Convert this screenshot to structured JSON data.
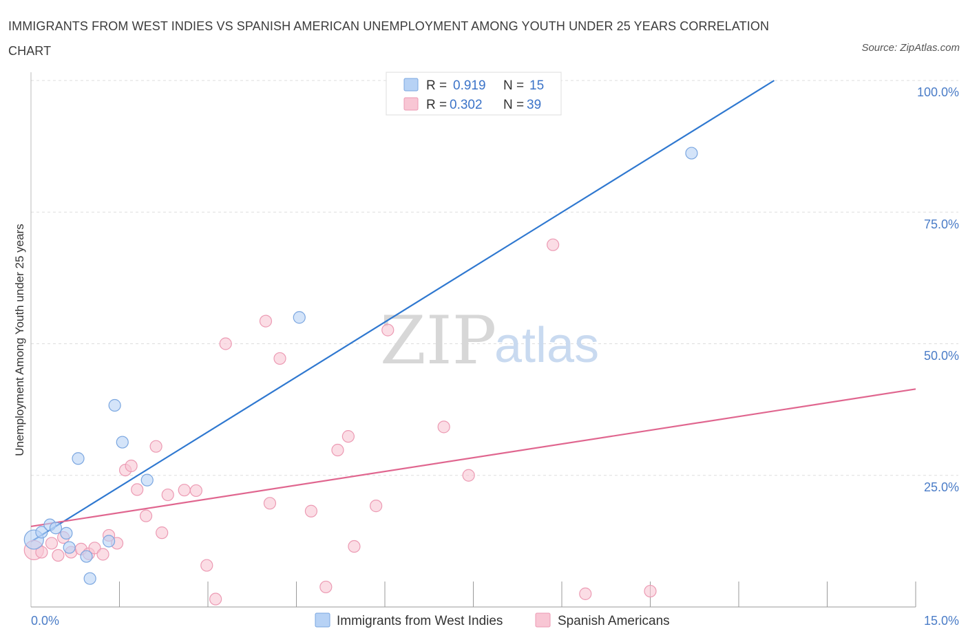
{
  "header": {
    "title": "IMMIGRANTS FROM WEST INDIES VS SPANISH AMERICAN UNEMPLOYMENT AMONG YOUTH UNDER 25 YEARS CORRELATION CHART",
    "source": "Source: ZipAtlas.com"
  },
  "watermark": {
    "zip": "ZIP",
    "atlas": "atlas"
  },
  "colors": {
    "blue_fill": "#b7d2f5",
    "blue_stroke": "#7aa6e0",
    "blue_line": "#2f78d0",
    "pink_fill": "#f8c6d4",
    "pink_stroke": "#ec9ab3",
    "pink_line": "#e0668f",
    "grid": "#dddddd",
    "axis_text": "#4a7cc7"
  },
  "legend": {
    "series1": {
      "r_label": "R =",
      "r_value": "0.919",
      "n_label": "N =",
      "n_value": "15"
    },
    "series2": {
      "r_label": "R =",
      "r_value": "0.302",
      "n_label": "N =",
      "n_value": "39"
    }
  },
  "chart_data": {
    "type": "scatter",
    "title": "IMMIGRANTS FROM WEST INDIES VS SPANISH AMERICAN UNEMPLOYMENT AMONG YOUTH UNDER 25 YEARS CORRELATION CHART",
    "xlabel": "",
    "ylabel": "Unemployment Among Youth under 25 years",
    "xlim": [
      0,
      15
    ],
    "ylim": [
      0,
      100
    ],
    "x_tick_labels": [
      "0.0%",
      "15.0%"
    ],
    "y_tick_labels": [
      "100.0%",
      "75.0%",
      "50.0%",
      "25.0%"
    ],
    "y_ticks": [
      100,
      75,
      50,
      25
    ],
    "series": [
      {
        "name": "Immigrants from West Indies",
        "color": "#b7d2f5",
        "r": 0.919,
        "n": 15,
        "points": [
          {
            "x": 0.05,
            "y": 12.8,
            "size": 14
          },
          {
            "x": 0.18,
            "y": 14.2
          },
          {
            "x": 0.32,
            "y": 15.6
          },
          {
            "x": 0.42,
            "y": 15.0
          },
          {
            "x": 0.6,
            "y": 14.0
          },
          {
            "x": 0.65,
            "y": 11.3
          },
          {
            "x": 0.8,
            "y": 28.2
          },
          {
            "x": 0.94,
            "y": 9.6
          },
          {
            "x": 1.0,
            "y": 5.4
          },
          {
            "x": 1.32,
            "y": 12.5
          },
          {
            "x": 1.42,
            "y": 38.3
          },
          {
            "x": 1.55,
            "y": 31.3
          },
          {
            "x": 1.97,
            "y": 24.1
          },
          {
            "x": 4.55,
            "y": 55.0
          },
          {
            "x": 11.2,
            "y": 86.2
          }
        ],
        "trend": {
          "x1": 0.0,
          "y1": 12.4,
          "x2": 12.6,
          "y2": 100.0
        }
      },
      {
        "name": "Spanish Americans",
        "color": "#f8c6d4",
        "r": 0.302,
        "n": 39,
        "points": [
          {
            "x": 0.05,
            "y": 10.8,
            "size": 14
          },
          {
            "x": 0.18,
            "y": 10.4
          },
          {
            "x": 0.35,
            "y": 12.1
          },
          {
            "x": 0.46,
            "y": 9.8
          },
          {
            "x": 0.55,
            "y": 13.2
          },
          {
            "x": 0.68,
            "y": 10.4
          },
          {
            "x": 0.85,
            "y": 11.0
          },
          {
            "x": 0.98,
            "y": 10.1
          },
          {
            "x": 1.08,
            "y": 11.2
          },
          {
            "x": 1.22,
            "y": 10.0
          },
          {
            "x": 1.32,
            "y": 13.6
          },
          {
            "x": 1.46,
            "y": 12.1
          },
          {
            "x": 1.6,
            "y": 26.0
          },
          {
            "x": 1.7,
            "y": 26.8
          },
          {
            "x": 1.8,
            "y": 22.3
          },
          {
            "x": 1.95,
            "y": 17.3
          },
          {
            "x": 2.12,
            "y": 30.5
          },
          {
            "x": 2.22,
            "y": 14.1
          },
          {
            "x": 2.32,
            "y": 21.3
          },
          {
            "x": 2.6,
            "y": 22.2
          },
          {
            "x": 2.8,
            "y": 22.1
          },
          {
            "x": 2.98,
            "y": 7.9
          },
          {
            "x": 3.13,
            "y": 1.5
          },
          {
            "x": 3.3,
            "y": 50.0
          },
          {
            "x": 3.98,
            "y": 54.3
          },
          {
            "x": 4.05,
            "y": 19.7
          },
          {
            "x": 4.22,
            "y": 47.2
          },
          {
            "x": 4.75,
            "y": 18.2
          },
          {
            "x": 5.0,
            "y": 3.8
          },
          {
            "x": 5.2,
            "y": 29.8
          },
          {
            "x": 5.38,
            "y": 32.4
          },
          {
            "x": 5.48,
            "y": 11.5
          },
          {
            "x": 5.85,
            "y": 19.2
          },
          {
            "x": 6.05,
            "y": 52.6
          },
          {
            "x": 7.0,
            "y": 34.2
          },
          {
            "x": 7.42,
            "y": 25.0
          },
          {
            "x": 8.85,
            "y": 68.8
          },
          {
            "x": 9.4,
            "y": 2.5
          },
          {
            "x": 10.5,
            "y": 3.0
          }
        ],
        "trend": {
          "x1": 0.0,
          "y1": 15.3,
          "x2": 15.0,
          "y2": 41.4
        }
      }
    ]
  }
}
